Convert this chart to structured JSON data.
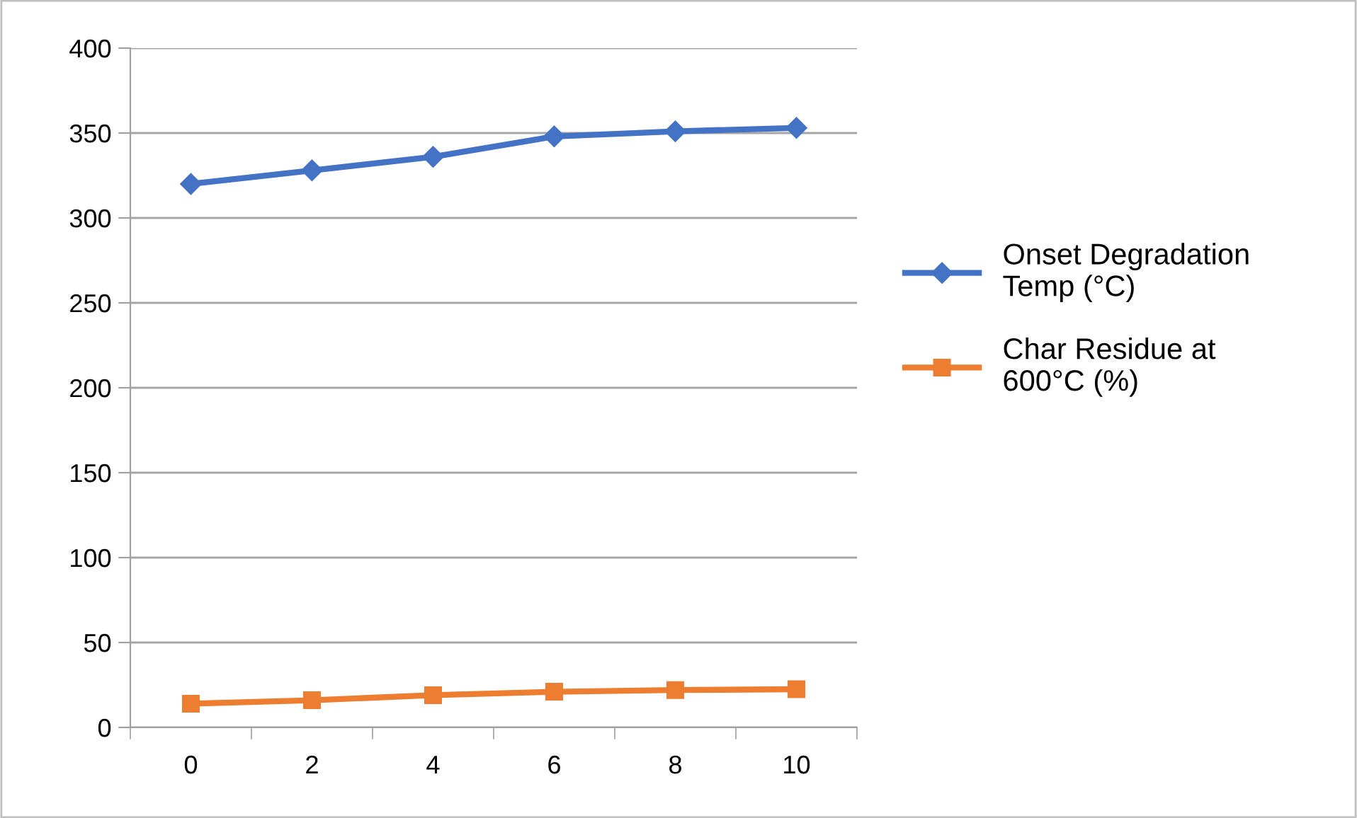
{
  "chart_data": {
    "type": "line",
    "categories": [
      "0",
      "2",
      "4",
      "6",
      "8",
      "10"
    ],
    "series": [
      {
        "name": "Onset Degradation Temp (°C)",
        "color": "#4472c4",
        "marker": "diamond",
        "values": [
          320,
          328,
          336,
          348,
          351,
          353
        ]
      },
      {
        "name": "Char Residue at 600°C (%)",
        "color": "#ed7d31",
        "marker": "square",
        "values": [
          14,
          16,
          19,
          21,
          22,
          22.5
        ]
      }
    ],
    "ylim": [
      0,
      400
    ],
    "yticks": [
      0,
      50,
      100,
      150,
      200,
      250,
      300,
      350,
      400
    ],
    "grid": "y",
    "legend": "right"
  }
}
